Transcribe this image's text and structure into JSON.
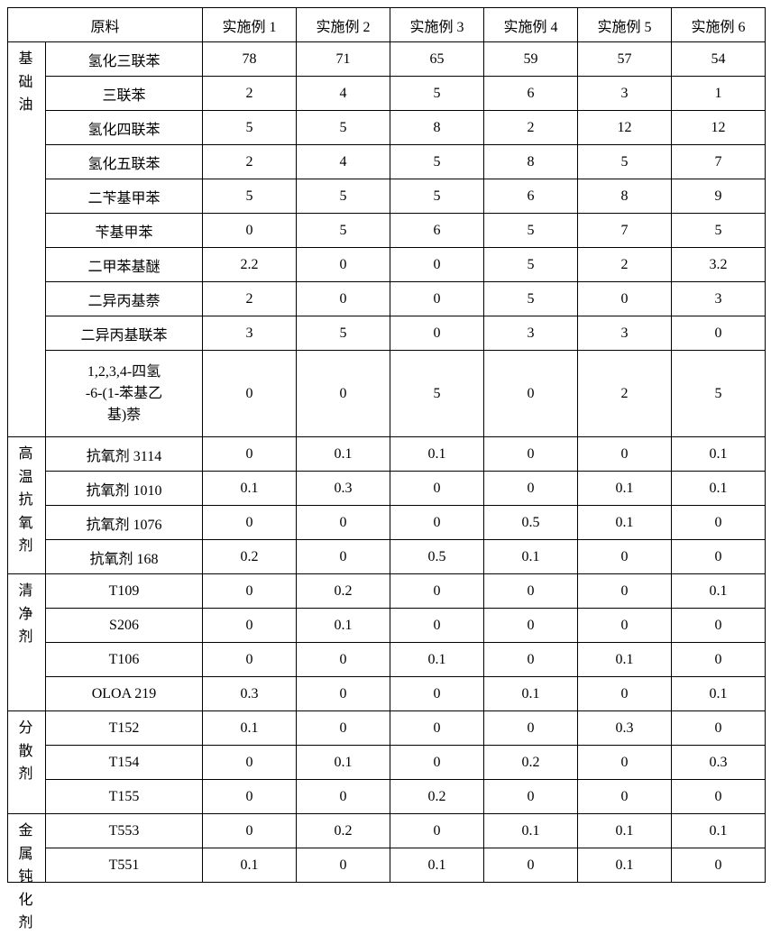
{
  "type": "table",
  "background_color": "#ffffff",
  "border_color": "#000000",
  "font_family": "SimSun",
  "header": {
    "group_col": "原料",
    "example_cols": [
      "实施例 1",
      "实施例 2",
      "实施例 3",
      "实施例 4",
      "实施例 5",
      "实施例 6"
    ]
  },
  "groups": [
    {
      "name": "基础油",
      "rows": [
        {
          "label": "氢化三联苯",
          "vals": [
            "78",
            "71",
            "65",
            "59",
            "57",
            "54"
          ]
        },
        {
          "label": "三联苯",
          "vals": [
            "2",
            "4",
            "5",
            "6",
            "3",
            "1"
          ]
        },
        {
          "label": "氢化四联苯",
          "vals": [
            "5",
            "5",
            "8",
            "2",
            "12",
            "12"
          ]
        },
        {
          "label": "氢化五联苯",
          "vals": [
            "2",
            "4",
            "5",
            "8",
            "5",
            "7"
          ]
        },
        {
          "label": "二苄基甲苯",
          "vals": [
            "5",
            "5",
            "5",
            "6",
            "8",
            "9"
          ]
        },
        {
          "label": "苄基甲苯",
          "vals": [
            "0",
            "5",
            "6",
            "5",
            "7",
            "5"
          ]
        },
        {
          "label": "二甲苯基醚",
          "vals": [
            "2.2",
            "0",
            "0",
            "5",
            "2",
            "3.2"
          ]
        },
        {
          "label": "二异丙基萘",
          "vals": [
            "2",
            "0",
            "0",
            "5",
            "0",
            "3"
          ]
        },
        {
          "label": "二异丙基联苯",
          "vals": [
            "3",
            "5",
            "0",
            "3",
            "3",
            "0"
          ]
        },
        {
          "label": "1,2,3,4-四氢\n-6-(1-苯基乙\n基)萘",
          "vals": [
            "0",
            "0",
            "5",
            "0",
            "2",
            "5"
          ],
          "tall": true
        }
      ]
    },
    {
      "name": "高温抗氧剂",
      "rows": [
        {
          "label": "抗氧剂 3114",
          "vals": [
            "0",
            "0.1",
            "0.1",
            "0",
            "0",
            "0.1"
          ]
        },
        {
          "label": "抗氧剂 1010",
          "vals": [
            "0.1",
            "0.3",
            "0",
            "0",
            "0.1",
            "0.1"
          ]
        },
        {
          "label": "抗氧剂 1076",
          "vals": [
            "0",
            "0",
            "0",
            "0.5",
            "0.1",
            "0"
          ]
        },
        {
          "label": "抗氧剂 168",
          "vals": [
            "0.2",
            "0",
            "0.5",
            "0.1",
            "0",
            "0"
          ]
        }
      ]
    },
    {
      "name": "清净剂",
      "rows": [
        {
          "label": "T109",
          "vals": [
            "0",
            "0.2",
            "0",
            "0",
            "0",
            "0.1"
          ]
        },
        {
          "label": "S206",
          "vals": [
            "0",
            "0.1",
            "0",
            "0",
            "0",
            "0"
          ]
        },
        {
          "label": "T106",
          "vals": [
            "0",
            "0",
            "0.1",
            "0",
            "0.1",
            "0"
          ]
        },
        {
          "label": "OLOA 219",
          "vals": [
            "0.3",
            "0",
            "0",
            "0.1",
            "0",
            "0.1"
          ]
        }
      ]
    },
    {
      "name": "分散剂",
      "rows": [
        {
          "label": "T152",
          "vals": [
            "0.1",
            "0",
            "0",
            "0",
            "0.3",
            "0"
          ]
        },
        {
          "label": "T154",
          "vals": [
            "0",
            "0.1",
            "0",
            "0.2",
            "0",
            "0.3"
          ]
        },
        {
          "label": "T155",
          "vals": [
            "0",
            "0",
            "0.2",
            "0",
            "0",
            "0"
          ]
        }
      ]
    },
    {
      "name": "金属钝化剂",
      "rows": [
        {
          "label": "T553",
          "vals": [
            "0",
            "0.2",
            "0",
            "0.1",
            "0.1",
            "0.1"
          ]
        },
        {
          "label": "T551",
          "vals": [
            "0.1",
            "0",
            "0.1",
            "0",
            "0.1",
            "0"
          ]
        }
      ]
    }
  ]
}
